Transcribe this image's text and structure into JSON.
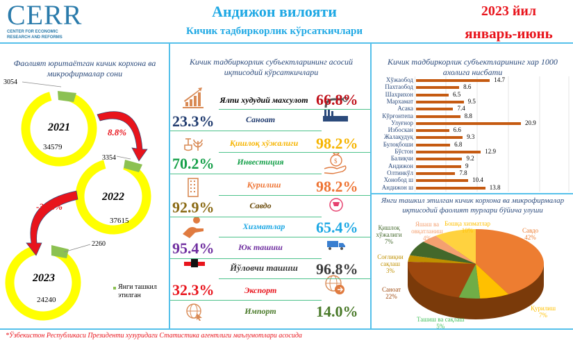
{
  "header": {
    "logo_text": "CERR",
    "logo_subtitle_1": "CENTER FOR ECONOMIC",
    "logo_subtitle_2": "RESEARCH AND REFORMS",
    "title": "Андижон вилояти",
    "subtitle": "Кичик тадбиркорлик кўрсаткичлари",
    "year": "2023 йил",
    "period": "январь-июнь"
  },
  "left_panel": {
    "title_line1": "Фаолият юритаётган кичик корхона ва",
    "title_line2": "микрофирмалар сони",
    "legend": "Янги ташкил этилган",
    "colors": {
      "active": "#ffff00",
      "new": "#8cc152",
      "arrow": "#e8141c"
    }
  },
  "center_panel": {
    "title_line1": "Кичик тадбиркорлик субъектларининг асосий",
    "title_line2": "иқтисодий кўрсаткичлари",
    "indicators": [
      {
        "name": "Ялпи худудий махсулот",
        "value": "66.8%",
        "color": "#c0101a",
        "icon": "growth-chart-icon"
      },
      {
        "name": "Саноат",
        "value": "23.3%",
        "color": "#1f3a6e",
        "icon": "factory-icon"
      },
      {
        "name": "Қишлоқ хўжалиги",
        "value": "98.2%",
        "color": "#f6b400",
        "icon": "shovel-plant-icon"
      },
      {
        "name": "Инвестиция",
        "value": "70.2%",
        "color": "#16a04a",
        "icon": "money-hand-icon"
      },
      {
        "name": "Қурилиш",
        "value": "98.2%",
        "color": "#ee7434",
        "icon": "building-icon"
      },
      {
        "name": "Савдо",
        "value": "92.9%",
        "color": "#8a6a14",
        "icon": "cart-icon"
      },
      {
        "name": "Хизматлар",
        "value": "65.4%",
        "color": "#1ea8e4",
        "icon": "service-hand-icon"
      },
      {
        "name": "Юк ташиш",
        "value": "95.4%",
        "color": "#7030a0",
        "icon": "truck-icon"
      },
      {
        "name": "Йўловчи ташиш",
        "value": "96.8%",
        "color": "#3a3a3a",
        "icon": "transport-icon"
      },
      {
        "name": "Экспорт",
        "value": "32.3%",
        "color": "#e8141c",
        "icon": "globe-export-icon"
      },
      {
        "name": "Импорт",
        "value": "14.0%",
        "color": "#4a7a2a",
        "icon": "globe-import-icon"
      }
    ]
  },
  "right_top_panel": {
    "title_line1": "Кичик тадбиркорлик субъектларининг хар 1000",
    "title_line2": "ахолига нисбати"
  },
  "right_bottom_panel": {
    "title_line1": "Янги ташкил этилган кичик корхона ва микрофирмалар",
    "title_line2": "иқтисодий фаолият турлари бўйича улуши"
  },
  "footer": "*Ўзбекистон Республикаси Президенти хузуридаги Статистика агентлиги маълумотлари асосида",
  "chart_data": [
    {
      "type": "pie",
      "title": "Фаолият юритаётган кичик корхона ва микрофирмалар сони",
      "series": [
        {
          "name": "2021",
          "active": 34579,
          "new": 3054
        },
        {
          "name": "2022",
          "active": 37615,
          "new": 3354
        },
        {
          "name": "2023",
          "active": 24240,
          "new": 2260
        }
      ],
      "changes": [
        {
          "from": "2021",
          "to": "2022",
          "label": "8.8%"
        },
        {
          "from": "2022",
          "to": "2023",
          "label": "-35.6%"
        }
      ],
      "legend": [
        "Янги ташкил этилган"
      ]
    },
    {
      "type": "bar",
      "orientation": "horizontal",
      "title": "Кичик тадбиркорлик субъектларининг хар 1000 ахолига нисбати",
      "categories": [
        "Хўжаобод",
        "Пахтаобод",
        "Шахрихон",
        "Мархамат",
        "Асака",
        "Кўрғонтепа",
        "Улуғнор",
        "Избоскан",
        "Жалақудуқ",
        "Булоқбоши",
        "Бўстон",
        "Балиқчи",
        "Андижон",
        "Олтинкўл",
        "Хонобод ш",
        "Андижон ш"
      ],
      "values": [
        14.7,
        8.6,
        6.5,
        9.5,
        7.4,
        8.8,
        20.9,
        6.6,
        9.3,
        6.8,
        12.9,
        9.2,
        9,
        7.8,
        10.4,
        13.8
      ],
      "xlim": [
        0,
        25
      ],
      "grid": true,
      "color": "#c55a11"
    },
    {
      "type": "pie",
      "title": "Янги ташкил этилган кичик корхона ва микрофирмалар иқтисодий фаолият турлари бўйича улуши",
      "categories": [
        "Савдо",
        "Қурилиш",
        "Ташиш ва сақлаш",
        "Саноат",
        "Соғлиқни сақлаш",
        "Қишлоқ хўжалиги",
        "Яшаш ва овқатланиш",
        "Бошқа хизматлар"
      ],
      "values": [
        42,
        7,
        5,
        22,
        3,
        7,
        4,
        10
      ],
      "colors": [
        "#ed7d31",
        "#ffc000",
        "#70ad47",
        "#9e480e",
        "#bf9000",
        "#43682b",
        "#f4a070",
        "#ffd23f"
      ]
    }
  ]
}
